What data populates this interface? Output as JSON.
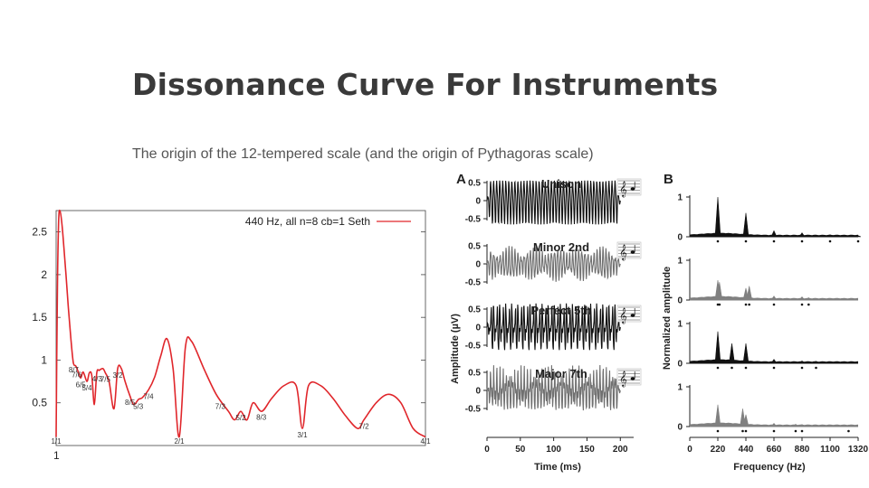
{
  "slide": {
    "title": "Dissonance Curve For Instruments",
    "subtitle": "The origin of the 12-tempered scale (and the origin of Pythagoras scale)"
  },
  "chart_data": [
    {
      "type": "line",
      "legend": "440 Hz, all n=8 cb=1 Seth",
      "legend_position": "top-right",
      "line_color": "#e0262b",
      "y_ticks": [
        "0.5",
        "1",
        "1.5",
        "2",
        "2.5"
      ],
      "y_tick_values": [
        0.5,
        1,
        1.5,
        2,
        2.5
      ],
      "x_tick_labels": [
        "1"
      ],
      "ylim": [
        0,
        2.75
      ],
      "xlim": [
        1,
        4
      ],
      "x": [
        1.0,
        1.01,
        1.02,
        1.03,
        1.05,
        1.08,
        1.1,
        1.12,
        1.14,
        1.16,
        1.18,
        1.2,
        1.22,
        1.25,
        1.27,
        1.29,
        1.31,
        1.33,
        1.35,
        1.38,
        1.4,
        1.43,
        1.47,
        1.5,
        1.53,
        1.56,
        1.6,
        1.63,
        1.67,
        1.7,
        1.75,
        1.8,
        1.85,
        1.9,
        1.95,
        2.0,
        2.05,
        2.1,
        2.2,
        2.3,
        2.4,
        2.45,
        2.5,
        2.55,
        2.6,
        2.67,
        2.75,
        2.85,
        2.95,
        3.0,
        3.05,
        3.15,
        3.25,
        3.35,
        3.45,
        3.5,
        3.6,
        3.7,
        3.8,
        3.9,
        4.0
      ],
      "y": [
        0.1,
        1.8,
        2.6,
        2.75,
        2.55,
        2.0,
        1.6,
        1.25,
        0.97,
        0.93,
        0.86,
        0.79,
        0.86,
        0.75,
        0.85,
        0.82,
        0.48,
        0.85,
        0.88,
        0.9,
        0.85,
        0.75,
        0.43,
        0.9,
        0.9,
        0.75,
        0.58,
        0.48,
        0.54,
        0.56,
        0.65,
        0.8,
        1.05,
        1.25,
        0.9,
        0.1,
        1.15,
        1.22,
        0.9,
        0.6,
        0.4,
        0.3,
        0.4,
        0.3,
        0.5,
        0.4,
        0.55,
        0.7,
        0.7,
        0.2,
        0.7,
        0.7,
        0.55,
        0.35,
        0.2,
        0.3,
        0.5,
        0.6,
        0.5,
        0.2,
        0.1
      ],
      "ratio_labels": [
        "1/1",
        "8/7",
        "7/6",
        "6/5",
        "5/4",
        "4/3",
        "7/5",
        "3/2",
        "8/5",
        "5/3",
        "7/4",
        "2/1",
        "7/3",
        "5/2",
        "8/3",
        "3/1",
        "7/2",
        "4/1"
      ],
      "ratio_values": [
        1,
        1.1429,
        1.1667,
        1.2,
        1.25,
        1.3333,
        1.4,
        1.5,
        1.6,
        1.6667,
        1.75,
        2,
        2.3333,
        2.5,
        2.6667,
        3,
        3.5,
        4
      ]
    },
    {
      "type": "line",
      "panel_label": "A",
      "xlabel": "Time (ms)",
      "ylabel": "Amplitude (µV)",
      "x_ticks": [
        "0",
        "50",
        "100",
        "150",
        "200"
      ],
      "y_ticks": [
        "0.5",
        "0",
        "-0.5"
      ],
      "series": [
        {
          "name": "Unison",
          "color": "#111111"
        },
        {
          "name": "Minor 2nd",
          "color": "#707070"
        },
        {
          "name": "Perfect 5th",
          "color": "#111111"
        },
        {
          "name": "Major 7th",
          "color": "#707070"
        }
      ]
    },
    {
      "type": "bar",
      "panel_label": "B",
      "xlabel": "Frequency (Hz)",
      "ylabel": "Normalized amplitude",
      "x_ticks": [
        "0",
        "220",
        "440",
        "660",
        "880",
        "1100",
        "1320"
      ],
      "y_ticks": [
        "1",
        "0"
      ],
      "spectra": [
        {
          "color": "#111111",
          "peaks": [
            [
              220,
              1.0
            ],
            [
              440,
              0.6
            ],
            [
              660,
              0.15
            ],
            [
              880,
              0.1
            ],
            [
              1100,
              0.05
            ],
            [
              1320,
              0.03
            ]
          ]
        },
        {
          "color": "#808080",
          "peaks": [
            [
              220,
              0.5
            ],
            [
              233,
              0.45
            ],
            [
              440,
              0.3
            ],
            [
              466,
              0.35
            ],
            [
              660,
              0.1
            ],
            [
              880,
              0.08
            ],
            [
              932,
              0.06
            ]
          ]
        },
        {
          "color": "#111111",
          "peaks": [
            [
              220,
              0.8
            ],
            [
              330,
              0.5
            ],
            [
              440,
              0.5
            ],
            [
              660,
              0.1
            ],
            [
              880,
              0.06
            ],
            [
              990,
              0.05
            ]
          ]
        },
        {
          "color": "#808080",
          "peaks": [
            [
              220,
              0.55
            ],
            [
              415,
              0.45
            ],
            [
              440,
              0.3
            ],
            [
              660,
              0.08
            ],
            [
              830,
              0.06
            ],
            [
              880,
              0.05
            ],
            [
              1245,
              0.04
            ]
          ]
        }
      ]
    }
  ]
}
